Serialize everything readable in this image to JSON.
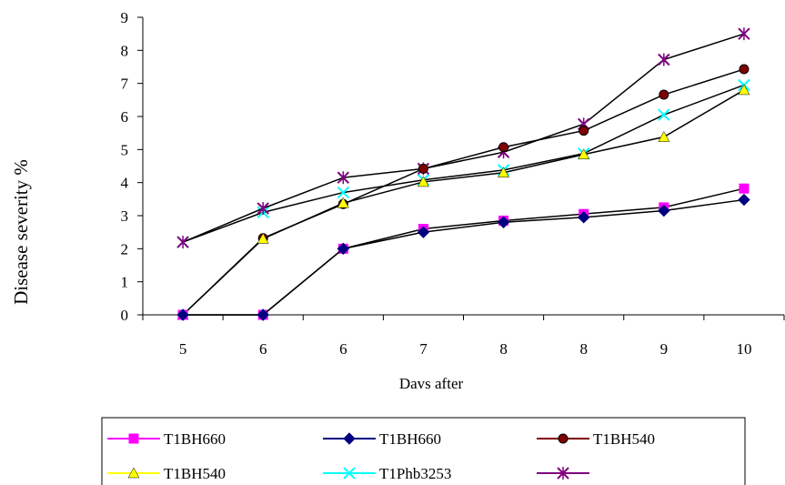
{
  "chart_data": {
    "type": "line",
    "title": "",
    "xlabel": "Davs after",
    "ylabel": "Disease severity %",
    "categories": [
      "5",
      "6",
      "6",
      "7",
      "8",
      "8",
      "9",
      "10"
    ],
    "ylim": [
      0,
      9
    ],
    "yticks": [
      "0",
      "1",
      "2",
      "3",
      "4",
      "5",
      "6",
      "7",
      "8",
      "9"
    ],
    "grid": false,
    "legend_position": "bottom",
    "series": [
      {
        "name": "T1BH660",
        "color": "#ff00ff",
        "marker": "square",
        "values": [
          0,
          0,
          2.0,
          2.6,
          2.85,
          3.05,
          3.25,
          3.82
        ]
      },
      {
        "name": "T1BH660",
        "color": "#000080",
        "marker": "diamond",
        "values": [
          0,
          0,
          2.0,
          2.5,
          2.8,
          2.95,
          3.15,
          3.48
        ]
      },
      {
        "name": "T1BH540",
        "color": "#800000",
        "marker": "circle",
        "values": [
          0,
          2.32,
          3.35,
          4.42,
          5.07,
          5.57,
          6.66,
          7.43
        ]
      },
      {
        "name": "T1BH540",
        "color": "#ffff00",
        "marker": "triangle",
        "values": [
          0,
          2.3,
          3.38,
          4.02,
          4.3,
          4.85,
          5.38,
          6.8
        ]
      },
      {
        "name": "T1Phb3253",
        "color": "#00ffff",
        "marker": "x",
        "values": [
          2.2,
          3.1,
          3.7,
          4.08,
          4.38,
          4.88,
          6.05,
          6.95
        ]
      },
      {
        "name": "",
        "color": "#800080",
        "marker": "star",
        "values": [
          2.2,
          3.22,
          4.15,
          4.42,
          4.92,
          5.77,
          7.72,
          8.5
        ]
      }
    ],
    "marker_outline_color": "#000000"
  }
}
